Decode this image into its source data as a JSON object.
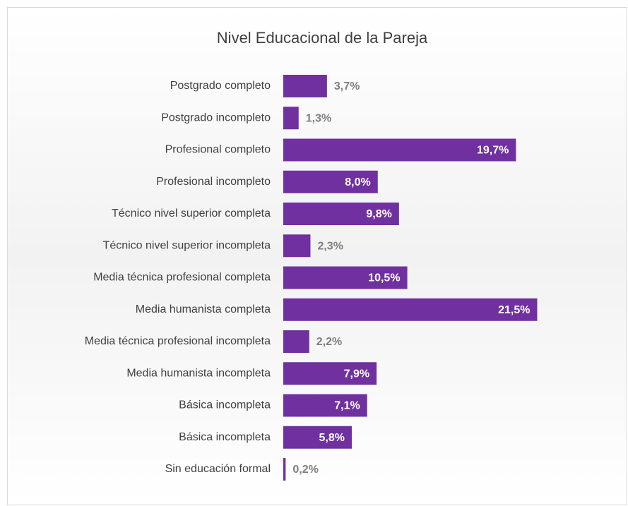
{
  "chart_data": {
    "type": "bar",
    "orientation": "horizontal",
    "title": "Nivel Educacional de la Pareja",
    "categories": [
      "Postgrado completo",
      "Postgrado incompleto",
      "Profesional completo",
      "Profesional incompleto",
      "Técnico nivel superior completa",
      "Técnico nivel superior incompleta",
      "Media técnica profesional completa",
      "Media humanista completa",
      "Media técnica profesional incompleta",
      "Media humanista incompleta",
      "Básica incompleta",
      "Básica incompleta",
      "Sin educación formal"
    ],
    "values": [
      3.7,
      1.3,
      19.7,
      8.0,
      9.8,
      2.3,
      10.5,
      21.5,
      2.2,
      7.9,
      7.1,
      5.8,
      0.2
    ],
    "value_labels": [
      "3,7%",
      "1,3%",
      "19,7%",
      "8,0%",
      "9,8%",
      "2,3%",
      "10,5%",
      "21,5%",
      "2,2%",
      "7,9%",
      "7,1%",
      "5,8%",
      "0,2%"
    ],
    "color": "#7030a0"
  }
}
